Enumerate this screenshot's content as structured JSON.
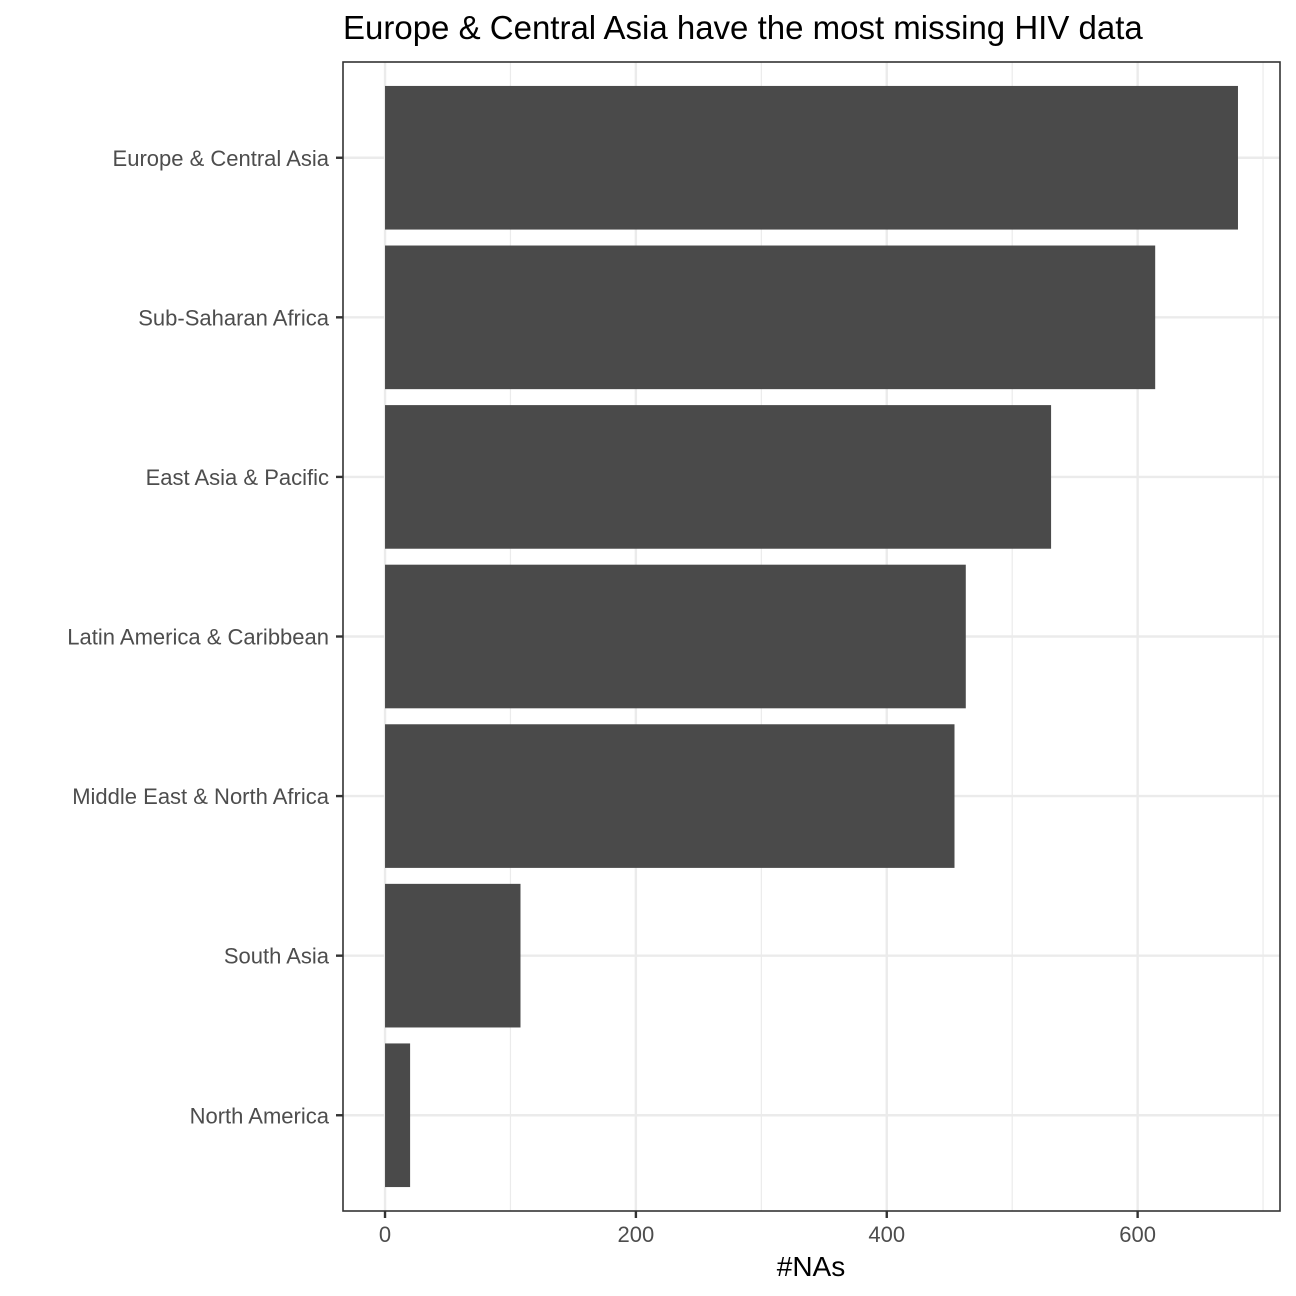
{
  "chart_data": {
    "type": "bar",
    "orientation": "horizontal",
    "title": "Europe & Central Asia have the most missing HIV data",
    "xlabel": "#NAs",
    "ylabel": "",
    "categories": [
      "Europe & Central Asia",
      "Sub-Saharan Africa",
      "East Asia & Pacific",
      "Latin America & Caribbean",
      "Middle East & North Africa",
      "South Asia",
      "North America"
    ],
    "values": [
      680,
      614,
      531,
      463,
      454,
      108,
      20
    ],
    "xlim": [
      -33.5,
      713.5
    ],
    "xticks": [
      0,
      200,
      400,
      600
    ],
    "xtick_labels": [
      "0",
      "200",
      "400",
      "600"
    ],
    "grid": true,
    "bar_color": "#4a4a4a"
  }
}
